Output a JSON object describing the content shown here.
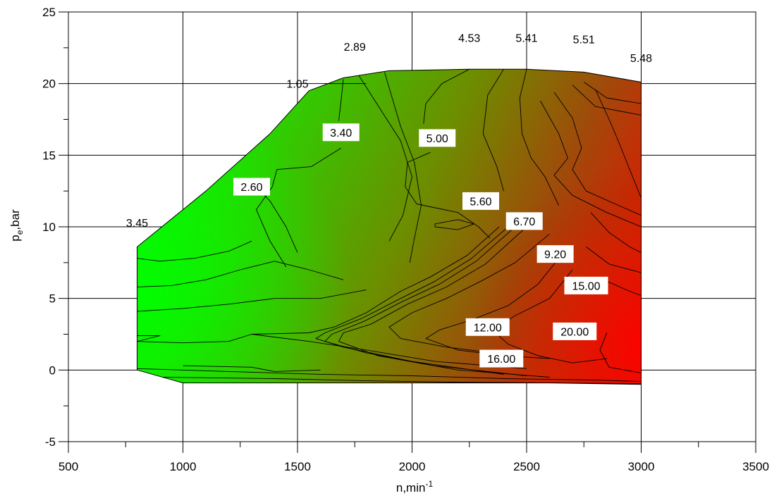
{
  "chart_data": {
    "type": "heatmap",
    "title": "",
    "xlabel": "n,min",
    "xlabel_sup": "-1",
    "ylabel": "p",
    "ylabel_sub": "e",
    "ylabel_suffix": ",bar",
    "xlim": [
      500,
      3500
    ],
    "ylim": [
      -5,
      25
    ],
    "x_ticks": [
      500,
      1000,
      1500,
      2000,
      2500,
      3000,
      3500
    ],
    "y_ticks": [
      -5,
      0,
      5,
      10,
      15,
      20,
      25
    ],
    "grid": true,
    "colormap": {
      "low": "#00ff00",
      "mid": "#6e8c00",
      "high": "#ff0000"
    },
    "boundary": [
      [
        800,
        0
      ],
      [
        800,
        8.6
      ],
      [
        1100,
        12.5
      ],
      [
        1380,
        16.5
      ],
      [
        1550,
        19.5
      ],
      [
        1700,
        20.4
      ],
      [
        1900,
        20.9
      ],
      [
        2250,
        21.0
      ],
      [
        2500,
        21.0
      ],
      [
        2750,
        20.8
      ],
      [
        3000,
        20.1
      ],
      [
        3000,
        -1.0
      ],
      [
        2600,
        -0.9
      ],
      [
        2000,
        -0.9
      ],
      [
        1000,
        -0.9
      ],
      [
        800,
        0
      ]
    ],
    "contour_labels": [
      {
        "text": "3.45",
        "x": 800,
        "y": 10.3,
        "boxed": false
      },
      {
        "text": "1.05",
        "x": 1500,
        "y": 20.0,
        "boxed": false
      },
      {
        "text": "2.89",
        "x": 1750,
        "y": 22.6,
        "boxed": false
      },
      {
        "text": "4.53",
        "x": 2250,
        "y": 23.2,
        "boxed": false
      },
      {
        "text": "5.41",
        "x": 2500,
        "y": 23.2,
        "boxed": false
      },
      {
        "text": "5.51",
        "x": 2750,
        "y": 23.1,
        "boxed": false
      },
      {
        "text": "5.48",
        "x": 3000,
        "y": 21.8,
        "boxed": false
      },
      {
        "text": "3.40",
        "x": 1690,
        "y": 16.6,
        "boxed": true
      },
      {
        "text": "2.60",
        "x": 1300,
        "y": 12.8,
        "boxed": true
      },
      {
        "text": "5.00",
        "x": 2110,
        "y": 16.2,
        "boxed": true
      },
      {
        "text": "5.60",
        "x": 2300,
        "y": 11.8,
        "boxed": true
      },
      {
        "text": "6.70",
        "x": 2490,
        "y": 10.4,
        "boxed": true
      },
      {
        "text": "9.20",
        "x": 2625,
        "y": 8.1,
        "boxed": true
      },
      {
        "text": "15.00",
        "x": 2760,
        "y": 5.9,
        "boxed": true
      },
      {
        "text": "12.00",
        "x": 2330,
        "y": 3.0,
        "boxed": true
      },
      {
        "text": "20.00",
        "x": 2710,
        "y": 2.7,
        "boxed": true
      },
      {
        "text": "16.00",
        "x": 2390,
        "y": 0.8,
        "boxed": true
      }
    ],
    "contour_lines": [
      [
        [
          800,
          7.8
        ],
        [
          900,
          7.6
        ],
        [
          1050,
          7.8
        ],
        [
          1200,
          8.3
        ],
        [
          1300,
          9.0
        ]
      ],
      [
        [
          800,
          5.8
        ],
        [
          950,
          5.9
        ],
        [
          1100,
          6.3
        ],
        [
          1250,
          7.0
        ],
        [
          1400,
          7.6
        ],
        [
          1550,
          7.0
        ],
        [
          1700,
          6.3
        ]
      ],
      [
        [
          800,
          4.1
        ],
        [
          1000,
          4.3
        ],
        [
          1200,
          4.6
        ],
        [
          1400,
          5.0
        ],
        [
          1600,
          5.0
        ],
        [
          1800,
          5.6
        ]
      ],
      [
        [
          800,
          2.4
        ],
        [
          900,
          2.4
        ],
        [
          800,
          2.0
        ],
        [
          1000,
          1.9
        ],
        [
          1200,
          2.0
        ],
        [
          1300,
          2.5
        ]
      ],
      [
        [
          1000,
          20.0
        ],
        [
          1300,
          20.0
        ],
        [
          1440,
          20.0
        ]
      ],
      [
        [
          1560,
          20.0
        ],
        [
          1700,
          20.0
        ],
        [
          1800,
          20.0
        ]
      ],
      [
        [
          1700,
          20.3
        ],
        [
          1690,
          18.8
        ],
        [
          1680,
          17.4
        ]
      ],
      [
        [
          1690,
          15.5
        ],
        [
          1560,
          14.2
        ],
        [
          1410,
          14.0
        ],
        [
          1390,
          12.8
        ],
        [
          1320,
          11.2
        ],
        [
          1380,
          9.0
        ],
        [
          1450,
          7.2
        ]
      ],
      [
        [
          1320,
          12.8
        ],
        [
          1380,
          11.8
        ],
        [
          1450,
          10.0
        ],
        [
          1500,
          8.2
        ]
      ],
      [
        [
          1750,
          21.0
        ],
        [
          1850,
          18.5
        ],
        [
          1950,
          16.0
        ],
        [
          2000,
          13.5
        ],
        [
          1960,
          10.8
        ],
        [
          1900,
          9.0
        ]
      ],
      [
        [
          1880,
          20.8
        ],
        [
          1950,
          17.0
        ],
        [
          2010,
          14.5
        ],
        [
          2040,
          11.5
        ],
        [
          2010,
          9.2
        ],
        [
          1990,
          7.5
        ]
      ],
      [
        [
          2250,
          21.0
        ],
        [
          2130,
          20.0
        ],
        [
          2060,
          18.6
        ],
        [
          2050,
          17.2
        ]
      ],
      [
        [
          2080,
          15.2
        ],
        [
          1980,
          14.5
        ],
        [
          1970,
          12.8
        ],
        [
          2020,
          11.6
        ],
        [
          2200,
          11.0
        ],
        [
          2290,
          10.0
        ],
        [
          2340,
          9.2
        ]
      ],
      [
        [
          2100,
          10.2
        ],
        [
          2200,
          10.5
        ],
        [
          2270,
          10.2
        ],
        [
          2200,
          9.8
        ],
        [
          2100,
          10.0
        ],
        [
          2100,
          10.2
        ]
      ],
      [
        [
          2400,
          21.0
        ],
        [
          2330,
          19.2
        ],
        [
          2310,
          16.5
        ],
        [
          2370,
          14.2
        ],
        [
          2400,
          12.5
        ]
      ],
      [
        [
          2500,
          21.0
        ],
        [
          2470,
          19.0
        ],
        [
          2480,
          16.5
        ],
        [
          2520,
          14.8
        ],
        [
          2580,
          13.5
        ],
        [
          2640,
          11.5
        ]
      ],
      [
        [
          2380,
          10.0
        ],
        [
          2240,
          8.0
        ],
        [
          2080,
          6.5
        ],
        [
          1950,
          5.5
        ],
        [
          1800,
          4.0
        ],
        [
          1660,
          3.0
        ],
        [
          1550,
          2.6
        ],
        [
          1300,
          2.5
        ],
        [
          1550,
          2.0
        ],
        [
          1800,
          1.4
        ],
        [
          2100,
          0.6
        ],
        [
          2500,
          0.1
        ]
      ],
      [
        [
          2420,
          10.0
        ],
        [
          2260,
          7.8
        ],
        [
          2100,
          6.2
        ],
        [
          1950,
          5.0
        ],
        [
          1780,
          3.6
        ],
        [
          1620,
          2.6
        ],
        [
          1580,
          2.2
        ],
        [
          1700,
          1.6
        ],
        [
          2000,
          0.6
        ],
        [
          2400,
          -0.3
        ]
      ],
      [
        [
          2450,
          10.0
        ],
        [
          2280,
          7.6
        ],
        [
          2120,
          6.0
        ],
        [
          1960,
          4.8
        ],
        [
          1790,
          3.4
        ],
        [
          1650,
          2.5
        ],
        [
          1620,
          2.0
        ],
        [
          1800,
          1.2
        ],
        [
          2100,
          0.3
        ],
        [
          2500,
          -0.4
        ]
      ],
      [
        [
          2500,
          10.0
        ],
        [
          2320,
          7.4
        ],
        [
          2150,
          5.8
        ],
        [
          1980,
          4.6
        ],
        [
          1820,
          3.2
        ],
        [
          1700,
          2.6
        ],
        [
          1680,
          2.0
        ],
        [
          1850,
          1.0
        ],
        [
          2200,
          0.0
        ],
        [
          2600,
          -0.5
        ]
      ],
      [
        [
          2600,
          9.5
        ],
        [
          2450,
          7.5
        ],
        [
          2300,
          6.2
        ],
        [
          2150,
          5.0
        ],
        [
          2000,
          4.0
        ],
        [
          1900,
          3.0
        ],
        [
          1950,
          2.2
        ],
        [
          2150,
          1.6
        ],
        [
          2350,
          1.2
        ]
      ],
      [
        [
          2650,
          8.0
        ],
        [
          2550,
          6.0
        ],
        [
          2420,
          4.5
        ],
        [
          2260,
          3.5
        ],
        [
          2120,
          2.8
        ],
        [
          2060,
          2.2
        ],
        [
          2200,
          1.4
        ],
        [
          2400,
          1.0
        ],
        [
          2600,
          0.8
        ]
      ],
      [
        [
          2700,
          7.0
        ],
        [
          2600,
          5.0
        ],
        [
          2450,
          3.8
        ],
        [
          2350,
          2.8
        ],
        [
          2420,
          1.8
        ],
        [
          2550,
          1.0
        ],
        [
          2700,
          0.5
        ],
        [
          2850,
          0.8
        ]
      ],
      [
        [
          2750,
          20.1
        ],
        [
          2850,
          19.0
        ],
        [
          3000,
          18.6
        ]
      ],
      [
        [
          2700,
          19.9
        ],
        [
          2800,
          18.4
        ],
        [
          3000,
          17.8
        ]
      ],
      [
        [
          2620,
          19.4
        ],
        [
          2700,
          17.6
        ],
        [
          2740,
          15.5
        ],
        [
          2700,
          14.0
        ],
        [
          2760,
          12.5
        ],
        [
          2900,
          11.5
        ],
        [
          3000,
          10.8
        ]
      ],
      [
        [
          2560,
          18.8
        ],
        [
          2640,
          16.5
        ],
        [
          2680,
          14.8
        ],
        [
          2620,
          13.6
        ],
        [
          2700,
          12.2
        ],
        [
          2850,
          11.0
        ],
        [
          3000,
          10.0
        ]
      ],
      [
        [
          2800,
          19.6
        ],
        [
          2860,
          17.5
        ],
        [
          2900,
          16.0
        ],
        [
          2960,
          13.6
        ],
        [
          3000,
          12.0
        ]
      ],
      [
        [
          2780,
          11.0
        ],
        [
          2860,
          9.6
        ],
        [
          2950,
          8.6
        ],
        [
          3000,
          8.2
        ]
      ],
      [
        [
          2760,
          8.6
        ],
        [
          2860,
          7.4
        ],
        [
          3000,
          6.8
        ]
      ],
      [
        [
          2850,
          6.2
        ],
        [
          2950,
          5.5
        ],
        [
          3000,
          5.2
        ]
      ],
      [
        [
          2850,
          2.6
        ],
        [
          2820,
          1.4
        ],
        [
          2860,
          0.2
        ],
        [
          3000,
          -0.2
        ]
      ],
      [
        [
          800,
          0.1
        ],
        [
          1200,
          -0.1
        ],
        [
          1600,
          -0.3
        ],
        [
          2000,
          -0.4
        ],
        [
          2400,
          -0.6
        ],
        [
          2800,
          -0.7
        ],
        [
          3000,
          -0.8
        ]
      ],
      [
        [
          900,
          -0.5
        ],
        [
          1400,
          -0.6
        ],
        [
          1800,
          -0.75
        ],
        [
          2200,
          -0.85
        ],
        [
          2600,
          -0.9
        ],
        [
          3000,
          -0.95
        ]
      ],
      [
        [
          1000,
          0.3
        ],
        [
          1300,
          0.2
        ],
        [
          1400,
          -0.1
        ],
        [
          1600,
          0.0
        ]
      ]
    ]
  }
}
